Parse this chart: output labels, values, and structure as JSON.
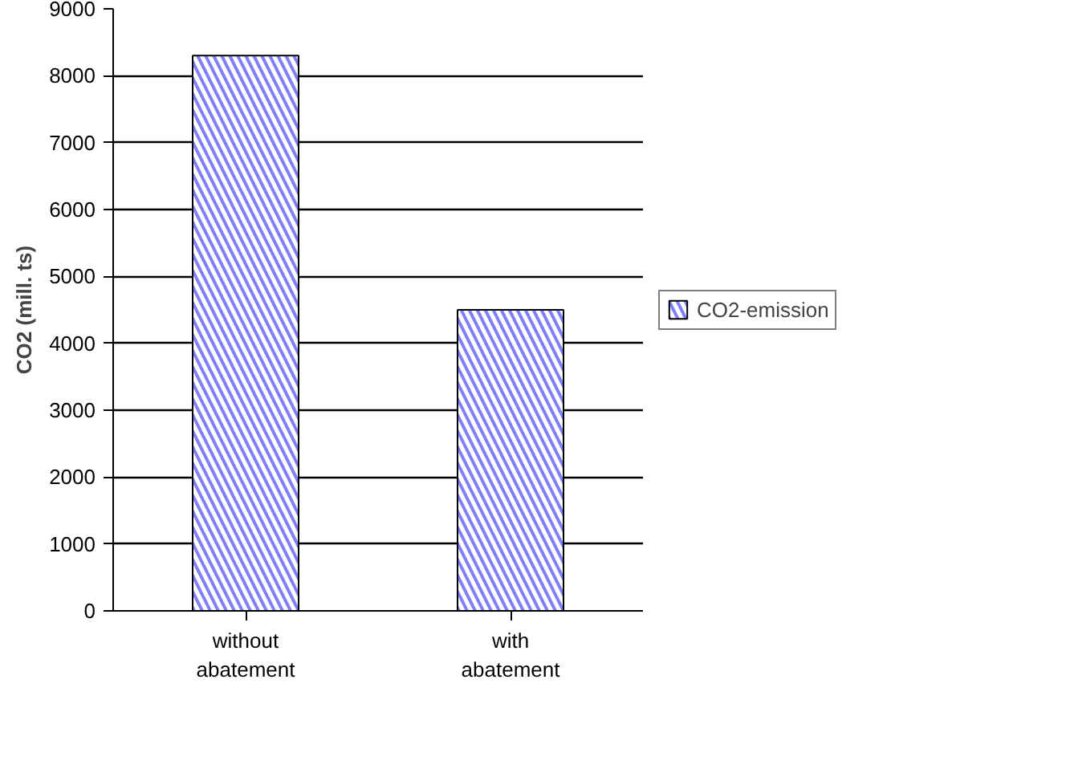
{
  "chart_data": {
    "type": "bar",
    "ylabel": "CO2 (mill. ts)",
    "categories": [
      "without abatement",
      "with abatement"
    ],
    "series": [
      {
        "name": "CO2-emission",
        "color": "#8080ff",
        "values": [
          8300,
          4500
        ]
      }
    ],
    "ylim": [
      0,
      9000
    ],
    "yticks": [
      0,
      1000,
      2000,
      3000,
      4000,
      5000,
      6000,
      7000,
      8000,
      9000
    ],
    "grid": "y",
    "legend": "right"
  }
}
